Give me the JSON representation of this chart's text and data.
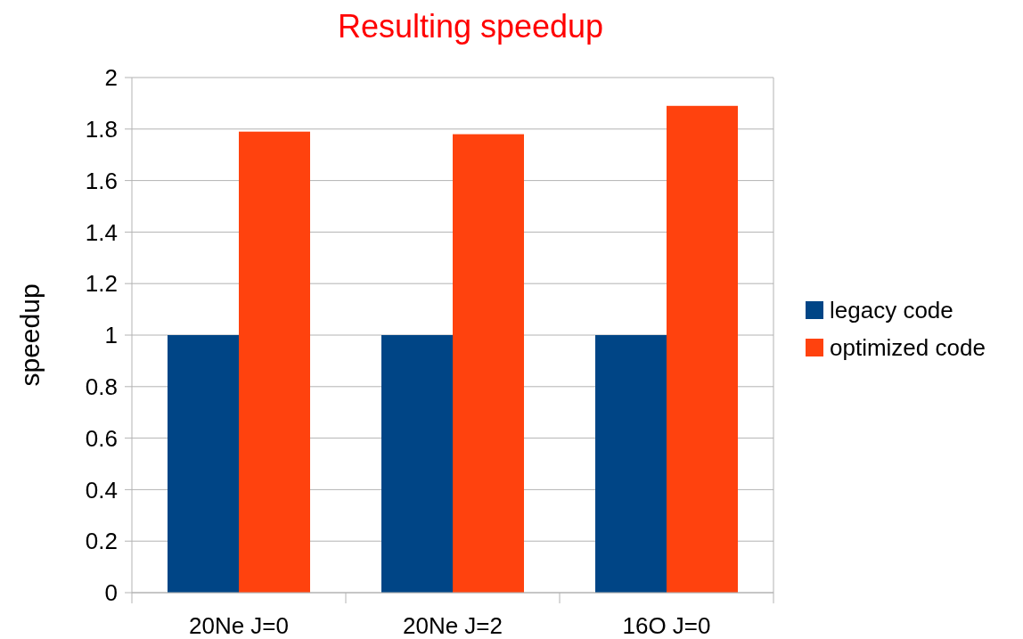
{
  "chart_data": {
    "type": "bar",
    "title": "Resulting speedup",
    "ylabel": "speedup",
    "categories": [
      "20Ne J=0",
      "20Ne J=2",
      "16O J=0"
    ],
    "series": [
      {
        "name": "legacy code",
        "color": "#004586",
        "values": [
          1,
          1,
          1
        ]
      },
      {
        "name": "optimized code",
        "color": "#ff420e",
        "values": [
          1.79,
          1.78,
          1.89
        ]
      }
    ],
    "ylim": [
      0,
      2
    ],
    "yticks": [
      0,
      0.2,
      0.4,
      0.6,
      0.8,
      1,
      1.2,
      1.4,
      1.6,
      1.8,
      2
    ],
    "grid": "y",
    "legend": "right"
  }
}
